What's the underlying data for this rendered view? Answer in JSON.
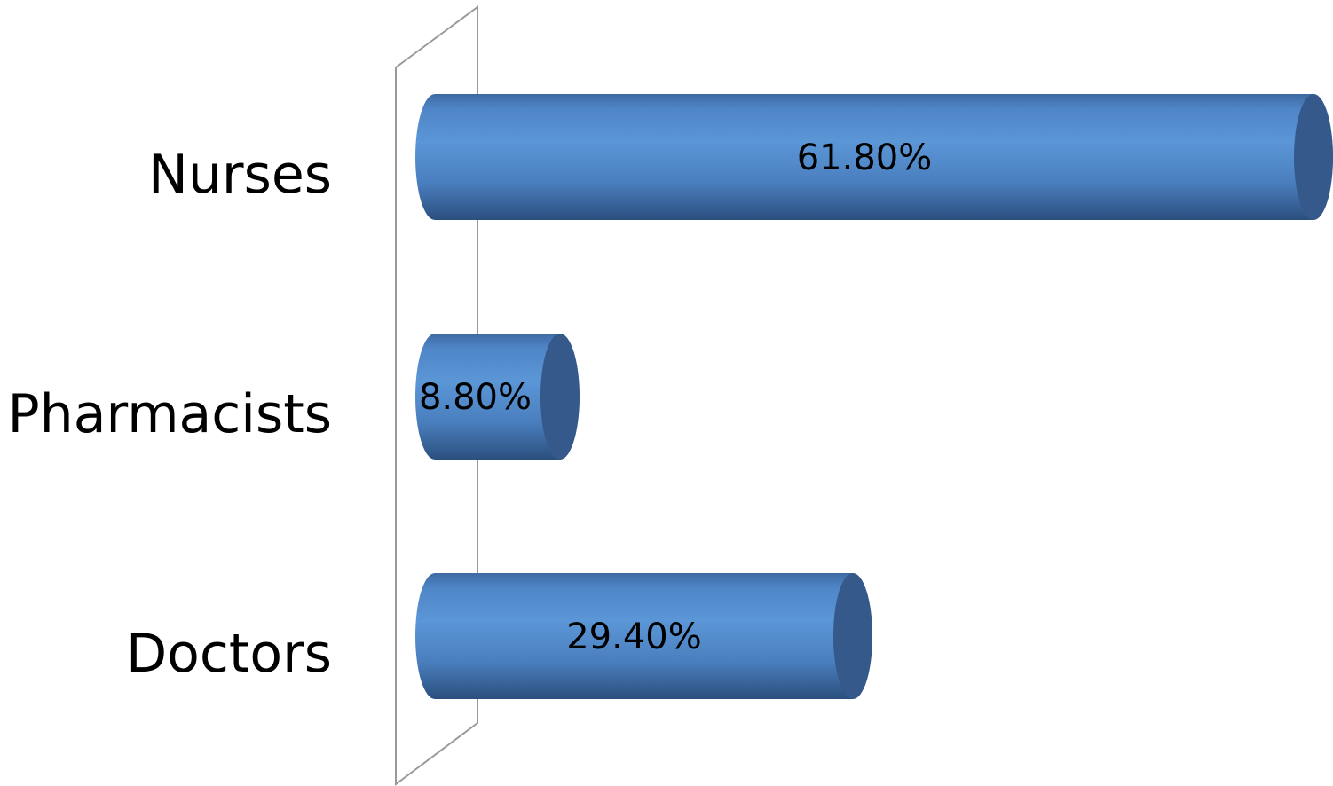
{
  "chart_data": {
    "type": "bar",
    "orientation": "horizontal",
    "style": "3d-cylinder",
    "categories": [
      "Nurses",
      "Pharmacists",
      "Doctors"
    ],
    "values": [
      61.8,
      8.8,
      29.4
    ],
    "data_labels": [
      "61.80%",
      "8.80%",
      "29.40%"
    ],
    "xlim": [
      0,
      61.8
    ],
    "grid": false,
    "legend": "none",
    "colors": {
      "bar_light": "#5b96d6",
      "bar_mid": "#4a7fbf",
      "bar_dark": "#2b4f7e",
      "bar_cap": "#34598a",
      "axis_wall": "#9a9a9a"
    }
  }
}
